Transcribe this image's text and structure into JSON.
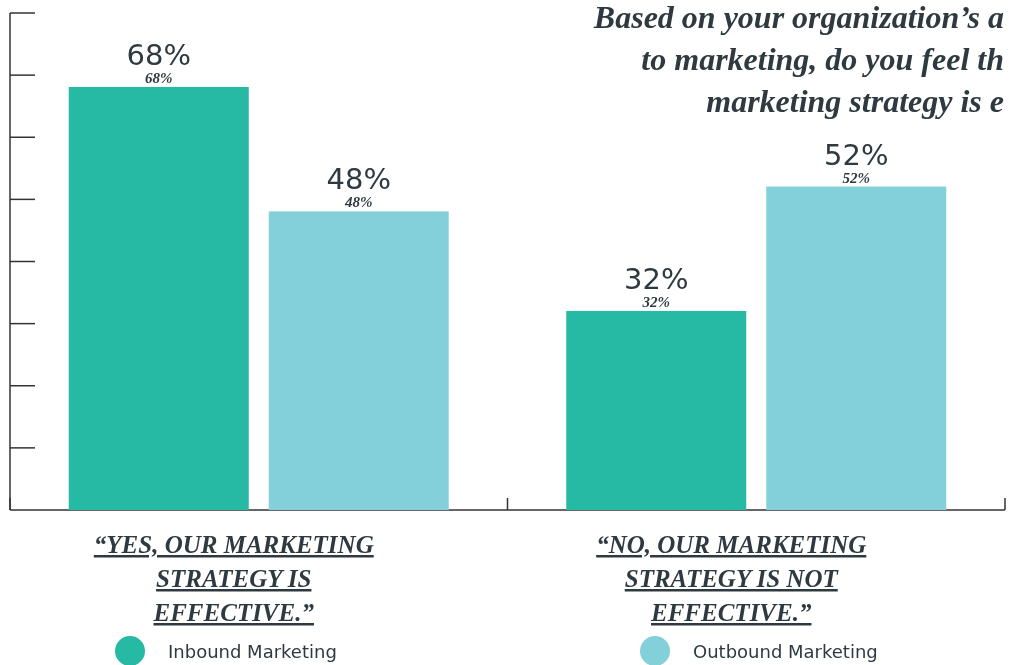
{
  "chart_data": {
    "type": "bar",
    "title": "Based on your organization’s a\nto marketing, do you feel th\nmarketing strategy is e",
    "categories": [
      "“YES, OUR MARKETING STRATEGY IS EFFECTIVE.”",
      "“NO, OUR MARKETING STRATEGY IS NOT EFFECTIVE.”"
    ],
    "series": [
      {
        "name": "Inbound Marketing",
        "color": "#26b9a3",
        "values": [
          68,
          32
        ],
        "value_labels": [
          "68%",
          "32%"
        ]
      },
      {
        "name": "Outbound Marketing",
        "color": "#84d0da",
        "values": [
          48,
          52
        ],
        "value_labels": [
          "48%",
          "52%"
        ]
      }
    ],
    "tick_labels": "x",
    "legend": "bottom"
  }
}
